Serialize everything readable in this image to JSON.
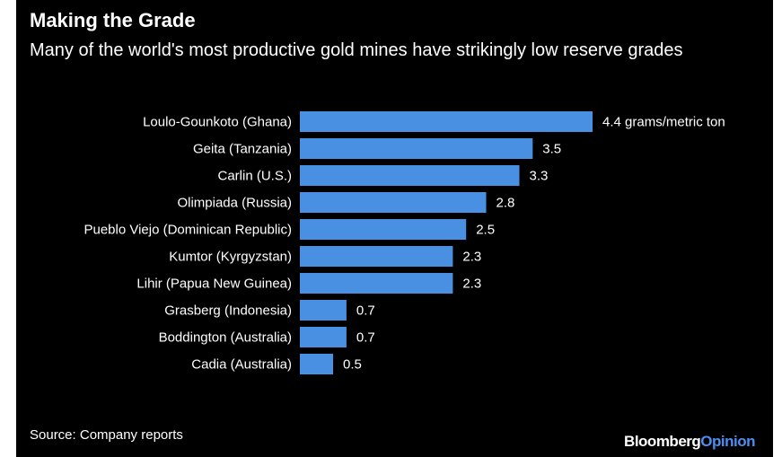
{
  "title": "Making the Grade",
  "subtitle": "Many of the world's most productive gold mines have strikingly low reserve grades",
  "source": "Source: Company reports",
  "brand": {
    "primary": "Bloomberg",
    "secondary": "Opinion"
  },
  "colors": {
    "background": "#000000",
    "bar": "#4a90e2",
    "text": "#ffffff",
    "brand_accent": "#4c8ff0"
  },
  "chart_data": {
    "type": "bar",
    "orientation": "horizontal",
    "categories": [
      "Loulo-Gounkoto (Ghana)",
      "Geita (Tanzania)",
      "Carlin (U.S.)",
      "Olimpiada (Russia)",
      "Pueblo Viejo (Dominican Republic)",
      "Kumtor (Kyrgyzstan)",
      "Lihir (Papua New Guinea)",
      "Grasberg (Indonesia)",
      "Boddington (Australia)",
      "Cadia (Australia)"
    ],
    "values": [
      4.4,
      3.5,
      3.3,
      2.8,
      2.5,
      2.3,
      2.3,
      0.7,
      0.7,
      0.5
    ],
    "value_labels": [
      "4.4 grams/metric ton",
      "3.5",
      "3.3",
      "2.8",
      "2.5",
      "2.3",
      "2.3",
      "0.7",
      "0.7",
      "0.5"
    ],
    "xlim": [
      0,
      4.4
    ],
    "grid": false,
    "legend": "none"
  }
}
